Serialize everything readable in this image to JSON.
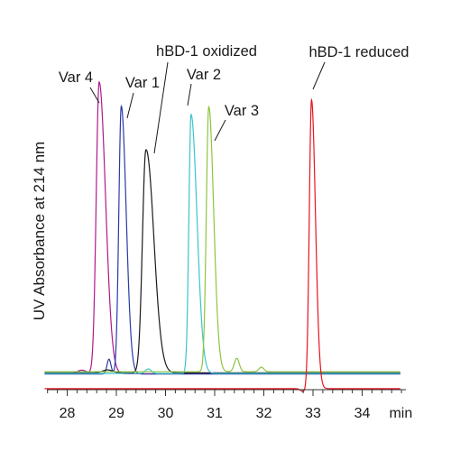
{
  "chart_data": {
    "type": "line",
    "title": "",
    "xlabel": "min",
    "ylabel": "UV Absorbance at 214 nm",
    "xlim": [
      27.5,
      34.8
    ],
    "ylim": [
      0,
      1
    ],
    "x_ticks": [
      28,
      29,
      30,
      31,
      32,
      33,
      34
    ],
    "grid": false,
    "legend": "none",
    "series": [
      {
        "name": "Var 4",
        "color": "#b0198c",
        "peak_x": 28.65,
        "peak_height": 0.98
      },
      {
        "name": "Var 1",
        "color": "#2a3aa6",
        "peak_x": 29.1,
        "peak_height": 0.9
      },
      {
        "name": "hBD-1 oxidized",
        "color": "#1a1a1a",
        "peak_x": 29.6,
        "peak_height": 0.74
      },
      {
        "name": "Var 2",
        "color": "#3cc4cc",
        "peak_x": 30.52,
        "peak_height": 0.87
      },
      {
        "name": "Var 3",
        "color": "#8cc63e",
        "peak_x": 30.88,
        "peak_height": 0.89
      },
      {
        "name": "hBD-1 reduced",
        "color": "#e8141e",
        "peak_x": 32.97,
        "peak_height": 0.97
      }
    ]
  }
}
